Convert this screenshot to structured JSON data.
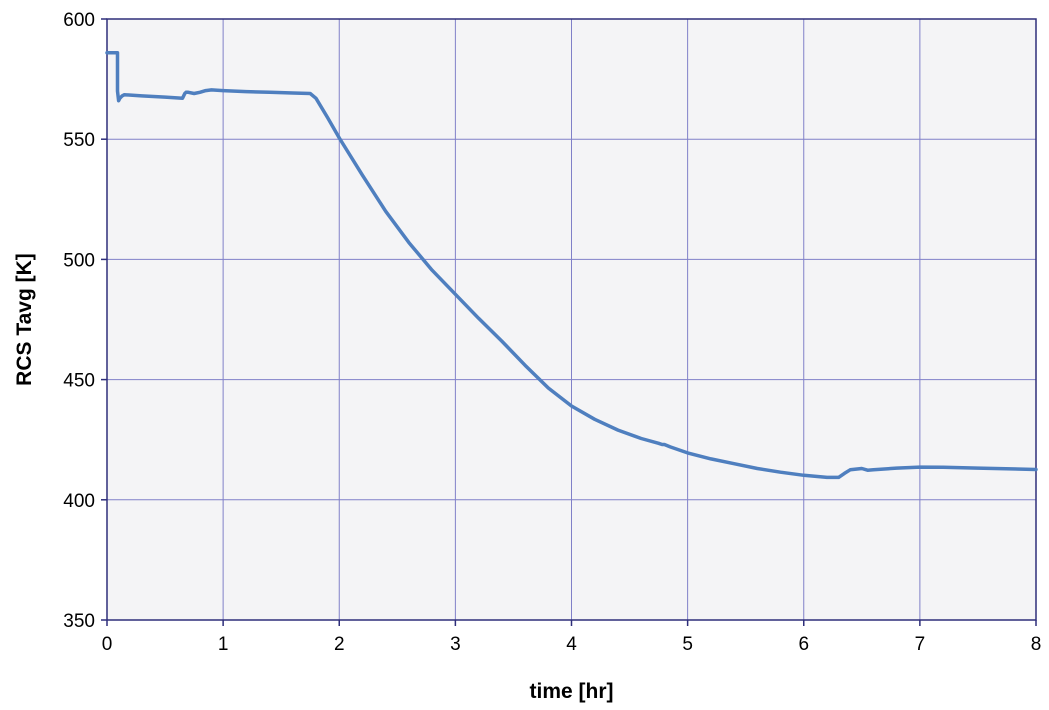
{
  "chart_data": {
    "type": "line",
    "title": "",
    "xlabel": "time [hr]",
    "ylabel": "RCS Tavg [K]",
    "xlim": [
      0,
      8
    ],
    "ylim": [
      350,
      600
    ],
    "xticks": [
      0,
      1,
      2,
      3,
      4,
      5,
      6,
      7,
      8
    ],
    "yticks": [
      350,
      400,
      450,
      500,
      550,
      600
    ],
    "grid": true,
    "legend": "none",
    "colors": {
      "plot_background": "#f4f4f6",
      "grid": "#8080c8",
      "frame": "#2e2e7a",
      "series": "#4f7fbf"
    },
    "series": [
      {
        "x": [
          0.0,
          0.05,
          0.09,
          0.09,
          0.1,
          0.11,
          0.13,
          0.15,
          0.3,
          0.5,
          0.65,
          0.67,
          0.68,
          0.7,
          0.75,
          0.8,
          0.85,
          0.9,
          1.0,
          1.2,
          1.4,
          1.6,
          1.75,
          1.8,
          1.9,
          2.0,
          2.2,
          2.4,
          2.6,
          2.8,
          3.0,
          3.2,
          3.4,
          3.6,
          3.8,
          4.0,
          4.2,
          4.4,
          4.6,
          4.75,
          4.78,
          4.8,
          4.85,
          5.0,
          5.2,
          5.4,
          5.6,
          5.8,
          6.0,
          6.2,
          6.3,
          6.35,
          6.4,
          6.5,
          6.55,
          6.6,
          6.8,
          7.0,
          7.2,
          7.5,
          8.0
        ],
        "y": [
          586,
          586,
          586,
          570,
          566,
          567,
          568,
          568.5,
          568,
          567.5,
          567,
          569,
          569.5,
          569.5,
          569,
          569.5,
          570.2,
          570.5,
          570.2,
          569.8,
          569.5,
          569.2,
          569,
          567,
          559,
          550.5,
          535,
          520,
          507,
          495.5,
          485.5,
          475.5,
          466,
          456,
          446.5,
          439,
          433.5,
          429,
          425.5,
          423.5,
          423,
          423,
          422,
          419.5,
          417,
          415,
          413,
          411.5,
          410.2,
          409.3,
          409.3,
          411,
          412.5,
          413,
          412.3,
          412.5,
          413.2,
          413.6,
          413.5,
          413.2,
          412.6
        ]
      }
    ]
  }
}
